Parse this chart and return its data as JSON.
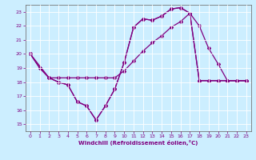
{
  "xlabel": "Windchill (Refroidissement éolien,°C)",
  "bg_color": "#cceeff",
  "line_color": "#800080",
  "grid_color": "#ffffff",
  "xmin": -0.5,
  "xmax": 23.5,
  "ymin": 14.5,
  "ymax": 23.5,
  "line1_x": [
    0,
    1,
    2,
    3,
    4,
    5,
    6,
    7,
    8,
    9,
    10,
    11,
    12,
    13,
    14,
    15,
    16,
    17,
    18,
    19,
    20,
    21,
    22,
    23
  ],
  "line1_y": [
    20,
    19,
    18.3,
    18,
    17.8,
    16.6,
    16.3,
    15.3,
    16.3,
    17.5,
    19.4,
    21.9,
    22.5,
    22.4,
    22.7,
    23.2,
    23.3,
    22.9,
    18.1,
    18.1,
    18.1,
    18.1,
    18.1,
    18.1
  ],
  "line2_x": [
    0,
    2,
    3,
    4,
    5,
    6,
    7,
    8,
    9,
    10,
    11,
    12,
    13,
    14,
    15,
    16,
    17,
    18,
    19,
    20,
    21,
    22,
    23
  ],
  "line2_y": [
    20,
    18.3,
    18.3,
    18.3,
    18.3,
    18.3,
    18.3,
    18.3,
    18.3,
    18.8,
    19.5,
    20.2,
    20.8,
    21.3,
    21.9,
    22.3,
    22.9,
    18.1,
    18.1,
    18.1,
    18.1,
    18.1,
    18.1
  ],
  "line3_x": [
    0,
    1,
    2,
    3,
    4,
    5,
    6,
    7,
    8,
    9,
    10,
    11,
    12,
    13,
    14,
    15,
    16,
    17,
    18,
    19,
    20,
    21,
    22,
    23
  ],
  "line3_y": [
    20,
    19,
    18.3,
    18,
    17.8,
    16.6,
    16.3,
    15.3,
    16.3,
    17.5,
    19.4,
    21.9,
    22.5,
    22.4,
    22.7,
    23.2,
    23.3,
    22.9,
    22.0,
    20.4,
    19.3,
    18.1,
    18.1,
    18.1
  ],
  "xticks": [
    0,
    1,
    2,
    3,
    4,
    5,
    6,
    7,
    8,
    9,
    10,
    11,
    12,
    13,
    14,
    15,
    16,
    17,
    18,
    19,
    20,
    21,
    22,
    23
  ],
  "yticks": [
    15,
    16,
    17,
    18,
    19,
    20,
    21,
    22,
    23
  ]
}
